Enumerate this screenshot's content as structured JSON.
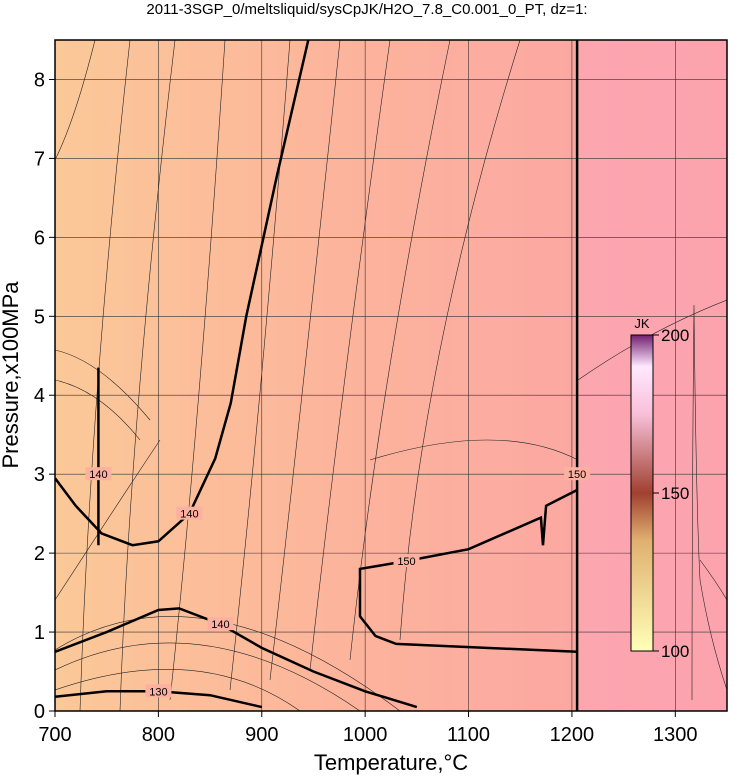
{
  "chart_data": {
    "type": "contour",
    "title": "2011-3SGP_0/meltsliquid/sysCpJK/H2O_7.8_C0.001_0_PT, dz=1:",
    "x_label": "Temperature,°C",
    "y_label": "Pressure,x100MPa",
    "xlim": [
      700,
      1350
    ],
    "ylim": [
      0,
      8.5
    ],
    "xticks": [
      700,
      800,
      900,
      1000,
      1100,
      1200,
      1300
    ],
    "yticks": [
      0,
      1,
      2,
      3,
      4,
      5,
      6,
      7,
      8
    ],
    "grid": true,
    "colorbar": {
      "label": "JK",
      "lim": [
        100,
        200
      ],
      "ticks": [
        100,
        150,
        200
      ]
    },
    "contours": [
      {
        "level": 140,
        "x": [
          700,
          720,
          745,
          775,
          800,
          830,
          855,
          870,
          885,
          915,
          945
        ],
        "y": [
          2.95,
          2.6,
          2.25,
          2.1,
          2.15,
          2.5,
          3.2,
          3.9,
          5,
          6.8,
          8.5
        ]
      },
      {
        "level": 140,
        "x": [
          700,
          750,
          800,
          820,
          860,
          900,
          950,
          1000,
          1050
        ],
        "y": [
          0.75,
          1.0,
          1.28,
          1.3,
          1.1,
          0.8,
          0.5,
          0.25,
          0.05
        ]
      },
      {
        "level": 130,
        "x": [
          700,
          750,
          800,
          850,
          900
        ],
        "y": [
          0.18,
          0.25,
          0.25,
          0.2,
          0.05
        ]
      },
      {
        "level": 150,
        "x": [
          1205,
          1175,
          1172,
          1170,
          1100,
          1040,
          995,
          995,
          1010,
          1030,
          1205
        ],
        "y": [
          2.8,
          2.6,
          2.1,
          2.45,
          2.05,
          1.9,
          1.8,
          1.2,
          0.95,
          0.85,
          0.75
        ]
      },
      {
        "level": 150,
        "x": [
          1205,
          1205,
          1205
        ],
        "y": [
          0,
          3,
          8.5
        ]
      },
      {
        "level": 140,
        "x": [
          742,
          742,
          742
        ],
        "y": [
          2.1,
          3.0,
          4.35
        ]
      }
    ]
  }
}
